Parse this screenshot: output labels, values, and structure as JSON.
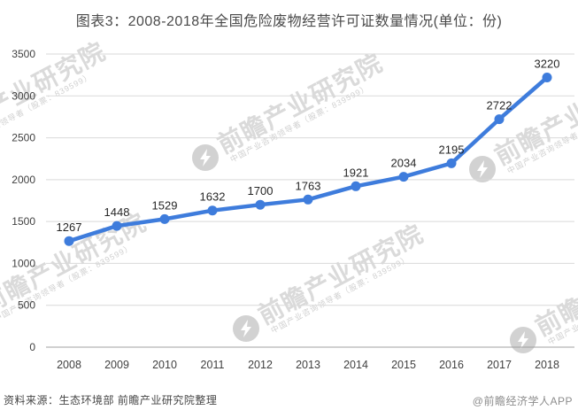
{
  "source_note": "资料来源：生态环境部 前瞻产业研究院整理",
  "credit": "@前瞻经济学人APP",
  "watermark": {
    "brand_text": "前瞻产业研究院",
    "brand_subtext": "中国产业咨询领导者（股票：839599）",
    "logo_name": "qianzhan-bolt-logo"
  },
  "colors": {
    "line": "#3E7CDC",
    "grid": "#D9D9D9",
    "axis": "#A0A0A0",
    "title_text": "#4A4A4A",
    "value_label_text": "#262626",
    "tick_text": "#404040",
    "source_text": "#464646",
    "credit_text": "#8C8C8C",
    "watermark_text": "#DADADA",
    "watermark_subtext": "#D0D0D0",
    "watermark_logo": "#D2D2D2"
  },
  "chart_data": {
    "type": "line",
    "title": "图表3：2008-2018年全国危险废物经营许可证数量情况(单位：份)",
    "categories": [
      "2008",
      "2009",
      "2010",
      "2011",
      "2012",
      "2013",
      "2014",
      "2015",
      "2016",
      "2017",
      "2018"
    ],
    "values": [
      1267,
      1448,
      1529,
      1632,
      1700,
      1763,
      1921,
      2034,
      2195,
      2722,
      3220
    ],
    "xlabel": "",
    "ylabel": "",
    "ylim": [
      0,
      3500
    ],
    "yticks": [
      0,
      500,
      1000,
      1500,
      2000,
      2500,
      3000,
      3500
    ],
    "grid": true,
    "legend": false,
    "marker": "circle",
    "data_labels": true
  }
}
